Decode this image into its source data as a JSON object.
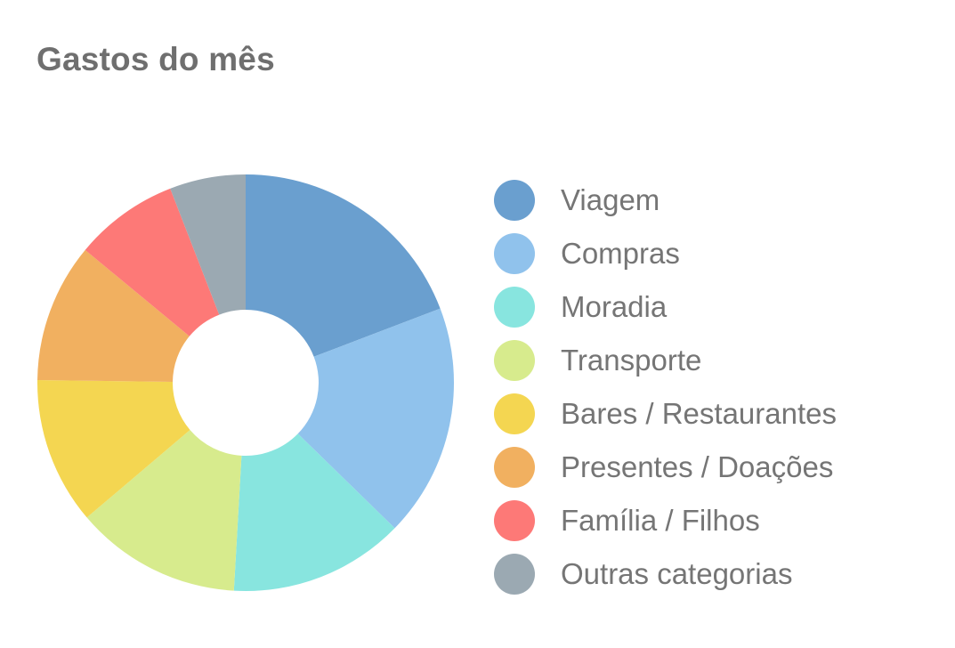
{
  "title": "Gastos do mês",
  "chart_data": {
    "type": "pie",
    "variant": "donut",
    "title": "Gastos do mês",
    "legend_position": "right",
    "categories": [
      "Viagem",
      "Compras",
      "Moradia",
      "Transporte",
      "Bares / Restaurantes",
      "Presentes / Doações",
      "Família / Filhos",
      "Outras categorias"
    ],
    "values": [
      19.2,
      18.1,
      13.6,
      12.9,
      11.4,
      10.8,
      8.1,
      5.9
    ],
    "colors": [
      "#6a9fcf",
      "#90c2ec",
      "#88e5df",
      "#d7eb8d",
      "#f4d651",
      "#f1b060",
      "#fd7977",
      "#9ba9b2"
    ]
  }
}
